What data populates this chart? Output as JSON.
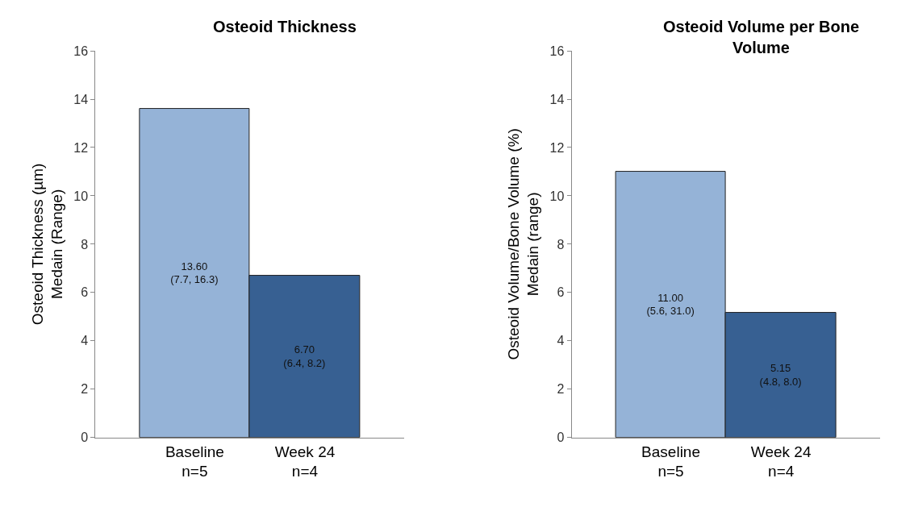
{
  "chart_data": [
    {
      "type": "bar",
      "title": "Osteoid Thickness",
      "ylabel": "Osteoid Thickness (µm)\nMedain (Range)",
      "categories": [
        "Baseline\nn=5",
        "Week 24\nn=4"
      ],
      "values": [
        13.6,
        6.7
      ],
      "colors": [
        "#95b3d7",
        "#376092"
      ],
      "value_labels": [
        "13.60\n(7.7, 16.3)",
        "6.70\n(6.4, 8.2)"
      ],
      "ylim": [
        0,
        16
      ],
      "yticks": [
        0,
        2,
        4,
        6,
        8,
        10,
        12,
        14,
        16
      ]
    },
    {
      "type": "bar",
      "title": "Osteoid Volume per Bone\nVolume",
      "ylabel": "Osteoid Volume/Bone Volume (%)\nMedain (range)",
      "categories": [
        "Baseline\nn=5",
        "Week 24\nn=4"
      ],
      "values": [
        11.0,
        5.15
      ],
      "colors": [
        "#95b3d7",
        "#376092"
      ],
      "value_labels": [
        "11.00\n(5.6, 31.0)",
        "5.15\n(4.8, 8.0)"
      ],
      "ylim": [
        0,
        16
      ],
      "yticks": [
        0,
        2,
        4,
        6,
        8,
        10,
        12,
        14,
        16
      ]
    }
  ]
}
